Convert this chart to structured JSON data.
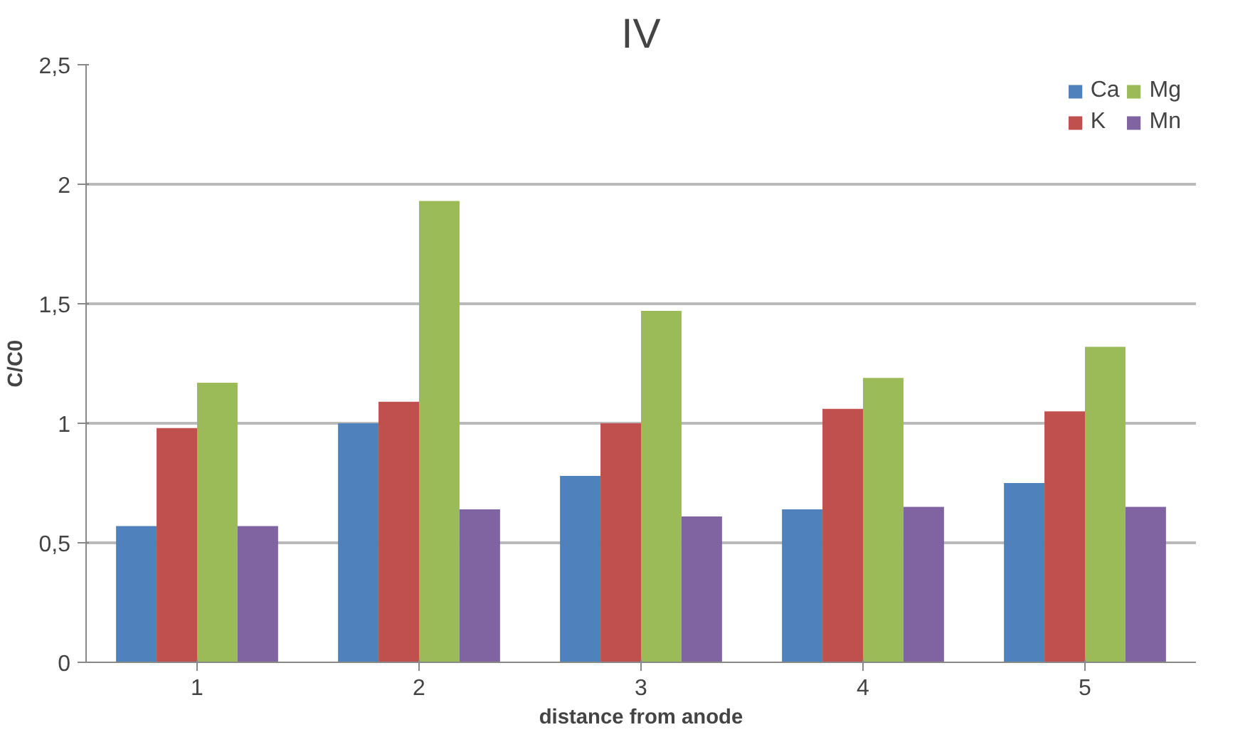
{
  "chart_data": {
    "type": "bar",
    "title": "IV",
    "xlabel": "distance from anode",
    "ylabel": "C/C0",
    "categories": [
      "1",
      "2",
      "3",
      "4",
      "5"
    ],
    "series": [
      {
        "name": "Ca",
        "color": "#4f81bd",
        "values": [
          0.57,
          1.0,
          0.78,
          0.64,
          0.75
        ]
      },
      {
        "name": "K",
        "color": "#c0504d",
        "values": [
          0.98,
          1.09,
          1.0,
          1.06,
          1.05
        ]
      },
      {
        "name": "Mg",
        "color": "#9bbb59",
        "values": [
          1.17,
          1.93,
          1.47,
          1.19,
          1.32
        ]
      },
      {
        "name": "Mn",
        "color": "#8064a2",
        "values": [
          0.57,
          0.64,
          0.61,
          0.65,
          0.65
        ]
      }
    ],
    "ylim": [
      0,
      2.5
    ],
    "yticks": [
      0,
      {
        "value": 0.5,
        "label": "0,5"
      },
      1,
      {
        "value": 1.5,
        "label": "1,5"
      },
      2,
      {
        "value": 2.5,
        "label": "2,5"
      }
    ],
    "grid": "y",
    "legend": "top right"
  }
}
